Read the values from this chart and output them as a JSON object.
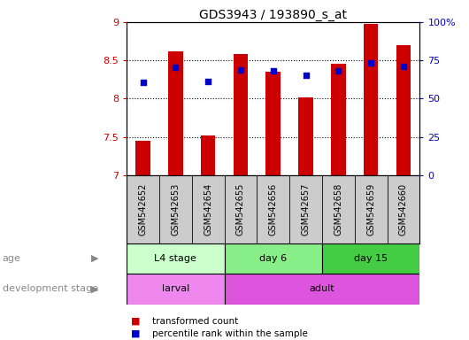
{
  "title": "GDS3943 / 193890_s_at",
  "samples": [
    "GSM542652",
    "GSM542653",
    "GSM542654",
    "GSM542655",
    "GSM542656",
    "GSM542657",
    "GSM542658",
    "GSM542659",
    "GSM542660"
  ],
  "transformed_count": [
    7.45,
    8.62,
    7.52,
    8.58,
    8.35,
    8.02,
    8.45,
    8.98,
    8.7
  ],
  "percentile_rank": [
    8.21,
    8.41,
    8.22,
    8.38,
    8.36,
    8.3,
    8.36,
    8.47,
    8.42
  ],
  "ylim_left": [
    7.0,
    9.0
  ],
  "ylim_right": [
    0,
    100
  ],
  "yticks_left": [
    7.0,
    7.5,
    8.0,
    8.5,
    9.0
  ],
  "ytick_labels_left": [
    "7",
    "7.5",
    "8",
    "8.5",
    "9"
  ],
  "yticks_right": [
    0,
    25,
    50,
    75,
    100
  ],
  "ytick_labels_right": [
    "0",
    "25",
    "50",
    "75",
    "100%"
  ],
  "bar_color": "#cc0000",
  "dot_color": "#0000cc",
  "bar_bottom": 7.0,
  "age_groups": [
    {
      "label": "L4 stage",
      "start": 0,
      "end": 3,
      "color": "#ccffcc"
    },
    {
      "label": "day 6",
      "start": 3,
      "end": 6,
      "color": "#88ee88"
    },
    {
      "label": "day 15",
      "start": 6,
      "end": 9,
      "color": "#44cc44"
    }
  ],
  "dev_groups": [
    {
      "label": "larval",
      "start": 0,
      "end": 3,
      "color": "#ee88ee"
    },
    {
      "label": "adult",
      "start": 3,
      "end": 9,
      "color": "#dd55dd"
    }
  ],
  "legend_items": [
    {
      "color": "#cc0000",
      "label": "transformed count"
    },
    {
      "color": "#0000cc",
      "label": "percentile rank within the sample"
    }
  ],
  "background_color": "#ffffff",
  "tick_label_color_left": "#cc0000",
  "tick_label_color_right": "#0000cc",
  "sample_area_bg": "#cccccc"
}
